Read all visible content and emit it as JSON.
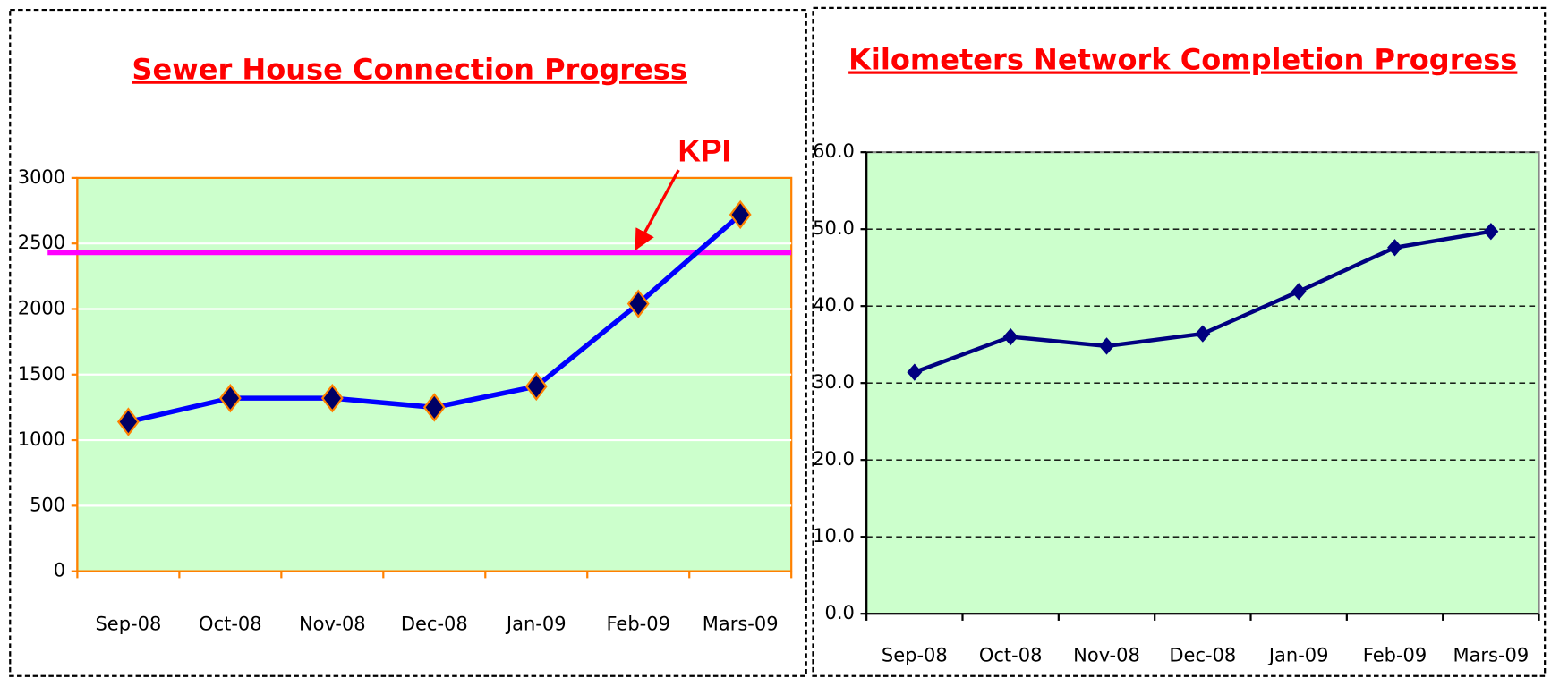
{
  "chart_data": [
    {
      "type": "line",
      "title": "Sewer House Connection Progress",
      "categories": [
        "Sep-08",
        "Oct-08",
        "Nov-08",
        "Dec-08",
        "Jan-09",
        "Feb-09",
        "Mars-09"
      ],
      "values": [
        1140,
        1320,
        1320,
        1250,
        1410,
        2040,
        2720
      ],
      "color": "#0000ff",
      "marker_color": "#000066",
      "marker_edge": "#ff8000",
      "ylim": [
        0,
        3000
      ],
      "yticks": [
        0,
        500,
        1000,
        1500,
        2000,
        2500,
        3000
      ],
      "grid": true,
      "grid_color": "#ffffff",
      "background": "#ccffcc",
      "axis_color": "#ff8000",
      "kpi": 2430,
      "kpi_color": "#ff00ff",
      "annotation": "KPI"
    },
    {
      "type": "line",
      "title": "Kilometers Network Completion Progress",
      "categories": [
        "Sep-08",
        "Oct-08",
        "Nov-08",
        "Dec-08",
        "Jan-09",
        "Feb-09",
        "Mars-09"
      ],
      "values": [
        31.4,
        36.0,
        34.8,
        36.4,
        41.9,
        47.6,
        49.7
      ],
      "color": "#000080",
      "marker_color": "#000080",
      "marker_edge": "#000080",
      "ylim": [
        0,
        60
      ],
      "yticks": [
        {
          "value": 0,
          "label": "0.0"
        },
        {
          "value": 10,
          "label": "10.0"
        },
        {
          "value": 20,
          "label": "20.0"
        },
        {
          "value": 30,
          "label": "30.0"
        },
        {
          "value": 40,
          "label": "40.0"
        },
        {
          "value": 50,
          "label": "50.0"
        },
        {
          "value": 60,
          "label": "60.0"
        }
      ],
      "grid": true,
      "grid_color": "#000000",
      "grid_dashed": true,
      "background": "#ccffcc",
      "axis_color": "#000000"
    }
  ]
}
